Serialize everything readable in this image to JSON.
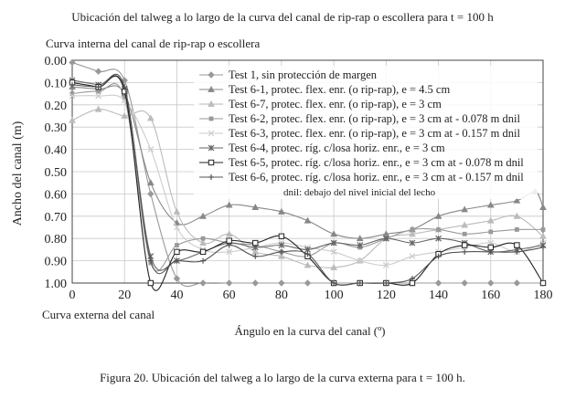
{
  "chart_data": {
    "type": "line",
    "title": "Ubicación del talweg a lo largo de la curva del canal de rip-rap o escollera para t = 100 h",
    "top_annotation": "Curva interna del canal de rip-rap o escollera",
    "bottom_annotation": "Curva externa del canal",
    "xlabel": "Ángulo en la curva del canal (º)",
    "ylabel": "Ancho del canal  (m)",
    "xlim": [
      0,
      180
    ],
    "ylim": [
      0.0,
      1.0
    ],
    "y_inverted": true,
    "grid": true,
    "x_ticks": [
      "0",
      "20",
      "40",
      "60",
      "80",
      "100",
      "120",
      "140",
      "160",
      "180"
    ],
    "y_ticks": [
      "0.00",
      "0.10",
      "0.20",
      "0.30",
      "0.40",
      "0.50",
      "0.60",
      "0.70",
      "0.80",
      "0.90",
      "1.00"
    ],
    "legend_position": "top-right",
    "legend_note": "dnil: debajo del nivel inicial del lecho",
    "series": [
      {
        "name": "Test 1, sin protección de margen",
        "marker": "diamond",
        "color": "#999999",
        "x": [
          0,
          10,
          20,
          30,
          40,
          50,
          60,
          70,
          80,
          90,
          100,
          110,
          120,
          130,
          140,
          150,
          160,
          170,
          180
        ],
        "y": [
          0.01,
          0.05,
          0.09,
          0.6,
          0.98,
          1.0,
          1.0,
          1.0,
          1.0,
          1.0,
          1.0,
          1.0,
          1.0,
          1.0,
          1.0,
          1.0,
          1.0,
          1.0,
          1.0
        ]
      },
      {
        "name": "Test 6-1, protec. flex. enr. (o rip-rap), e = 4.5 cm",
        "marker": "triangle",
        "color": "#888888",
        "x": [
          0,
          10,
          20,
          30,
          40,
          50,
          60,
          70,
          80,
          90,
          100,
          110,
          120,
          130,
          140,
          150,
          160,
          170,
          177,
          180
        ],
        "y": [
          0.12,
          0.13,
          0.15,
          0.55,
          0.73,
          0.7,
          0.65,
          0.66,
          0.68,
          0.72,
          0.78,
          0.8,
          0.78,
          0.76,
          0.7,
          0.67,
          0.65,
          0.63,
          0.59,
          0.66
        ]
      },
      {
        "name": "Test 6-7, protec. flex. enr. (o rip-rap), e = 3 cm",
        "marker": "triangle",
        "color": "#bbbbbb",
        "x": [
          0,
          10,
          20,
          30,
          40,
          50,
          60,
          70,
          80,
          90,
          100,
          110,
          120,
          130,
          140,
          150,
          160,
          170,
          180
        ],
        "y": [
          0.27,
          0.22,
          0.25,
          0.26,
          0.68,
          0.82,
          0.78,
          0.86,
          0.88,
          0.92,
          0.93,
          0.9,
          0.8,
          0.78,
          0.76,
          0.74,
          0.72,
          0.7,
          0.79
        ]
      },
      {
        "name": "Test 6-2, protec. flex. enr. (o rip-rap), e = 3 cm at - 0.078 m dnil",
        "marker": "square",
        "color": "#999999",
        "x": [
          0,
          10,
          20,
          30,
          40,
          50,
          60,
          70,
          80,
          90,
          100,
          110,
          120,
          130,
          140,
          150,
          160,
          170,
          180
        ],
        "y": [
          0.15,
          0.14,
          0.17,
          0.91,
          0.83,
          0.8,
          0.82,
          0.83,
          0.86,
          0.88,
          0.82,
          0.84,
          0.8,
          0.76,
          0.76,
          0.78,
          0.77,
          0.76,
          0.76
        ]
      },
      {
        "name": "Test 6-3, protec. flex. enr. (o rip-rap), e = 3 cm at - 0.157 m dnil",
        "marker": "cross",
        "color": "#cccccc",
        "x": [
          0,
          10,
          20,
          30,
          40,
          50,
          60,
          70,
          80,
          90,
          100,
          110,
          120,
          130,
          140,
          150,
          160,
          170,
          180
        ],
        "y": [
          0.16,
          0.16,
          0.18,
          0.4,
          0.75,
          0.85,
          0.86,
          0.84,
          0.82,
          0.84,
          0.86,
          0.9,
          0.92,
          0.88,
          0.86,
          0.84,
          0.82,
          0.86,
          0.82
        ]
      },
      {
        "name": "Test 6-4, protec. ríg. c/losa horiz. enr., e = 3 cm",
        "marker": "asterisk",
        "color": "#666666",
        "x": [
          0,
          10,
          20,
          30,
          40,
          50,
          60,
          70,
          80,
          90,
          100,
          110,
          120,
          130,
          140,
          150,
          160,
          170,
          180
        ],
        "y": [
          0.09,
          0.11,
          0.13,
          0.88,
          0.9,
          0.86,
          0.82,
          0.84,
          0.83,
          0.85,
          0.82,
          0.83,
          0.8,
          0.82,
          0.8,
          0.82,
          0.86,
          0.85,
          0.83
        ]
      },
      {
        "name": "Test 6-5, protec. ríg. c/losa horiz. enr., e = 3 cm at - 0.078 m dnil",
        "marker": "square-open",
        "color": "#222222",
        "x": [
          0,
          10,
          20,
          30,
          40,
          50,
          60,
          70,
          80,
          90,
          100,
          110,
          120,
          130,
          140,
          150,
          160,
          170,
          180
        ],
        "y": [
          0.1,
          0.12,
          0.14,
          1.0,
          0.86,
          0.86,
          0.81,
          0.82,
          0.79,
          0.88,
          1.0,
          1.0,
          1.0,
          1.0,
          0.87,
          0.83,
          0.84,
          0.83,
          1.0
        ]
      },
      {
        "name": "Test 6-6, protec. ríg. c/losa horiz. enr., e = 3 cm at - 0.157 m dnil",
        "marker": "plus",
        "color": "#555555",
        "x": [
          0,
          10,
          20,
          30,
          40,
          50,
          60,
          70,
          80,
          90,
          100,
          110,
          120,
          130,
          140,
          150,
          160,
          170,
          180
        ],
        "y": [
          0.11,
          0.12,
          0.12,
          0.9,
          0.9,
          0.9,
          0.83,
          0.88,
          0.86,
          0.87,
          1.0,
          1.0,
          1.0,
          0.98,
          0.88,
          0.86,
          0.86,
          0.86,
          0.84
        ]
      }
    ]
  },
  "caption": "Figura 20. Ubicación del talweg a lo largo de la curva externa para t = 100 h."
}
